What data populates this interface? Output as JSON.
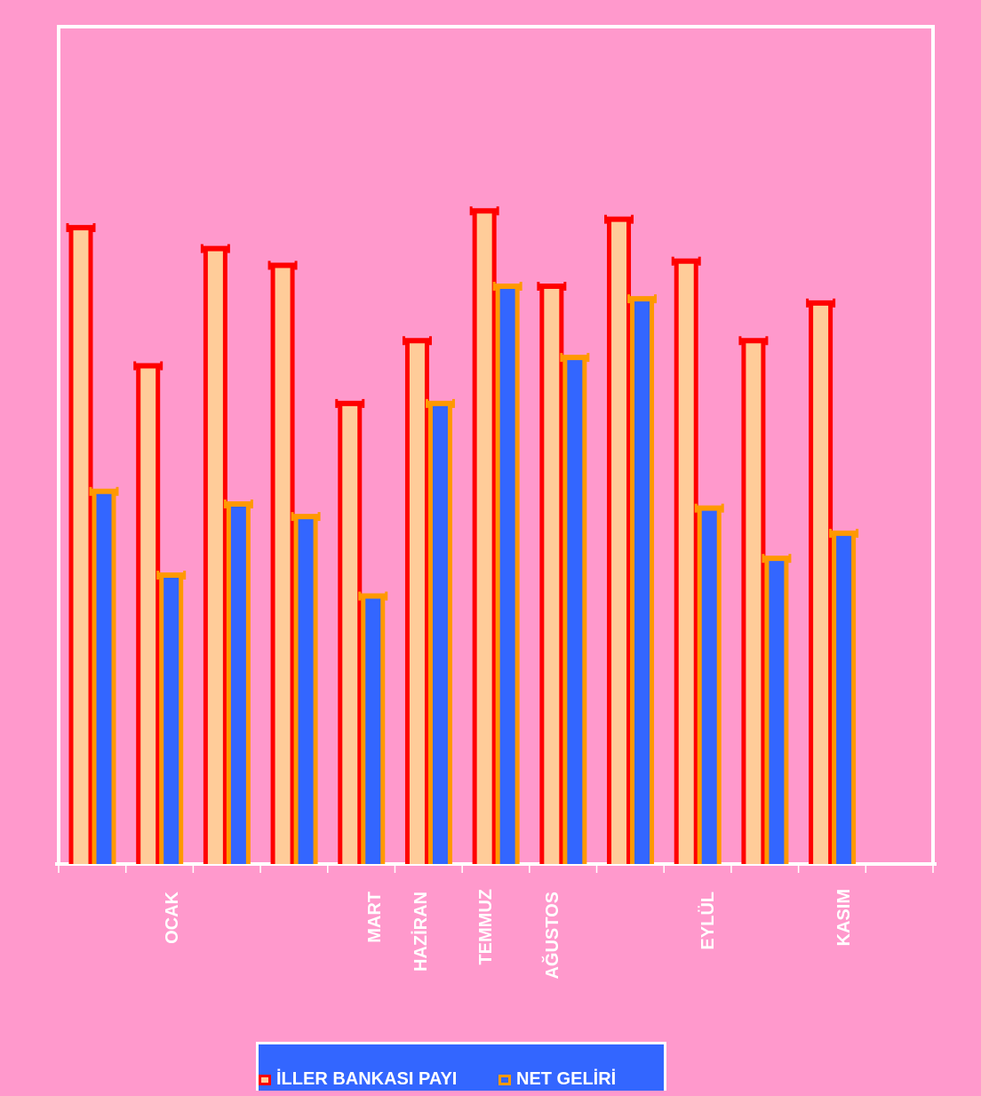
{
  "chart_data": {
    "type": "bar",
    "title": "",
    "xlabel": "",
    "ylabel": "",
    "categories": [
      "",
      "OCAK",
      "",
      "",
      "MART",
      "HAZİRAN",
      "TEMMUZ",
      "AĞUSTOS",
      "",
      "EYLÜL",
      "",
      "KASIM",
      ""
    ],
    "series": [
      {
        "name": "İLLER BANKASI PAYI",
        "fill": "#ffcc99",
        "stroke": "#ff0000",
        "values": [
          76,
          59.5,
          73.5,
          71.5,
          55,
          62.5,
          78,
          69,
          77,
          72,
          62.5,
          67,
          null
        ]
      },
      {
        "name": "NET GELİRİ",
        "fill": "#3366ff",
        "stroke": "#ff9900",
        "values": [
          44.5,
          34.5,
          43,
          41.5,
          32,
          55,
          69,
          60.5,
          67.5,
          42.5,
          36.5,
          39.5,
          null
        ]
      }
    ],
    "ylim": [
      0,
      100
    ],
    "grid": false,
    "legend_position": "bottom"
  },
  "colors": {
    "background": "#ff99cc",
    "axes": "#ffffff",
    "legend_background": "#3366ff"
  }
}
